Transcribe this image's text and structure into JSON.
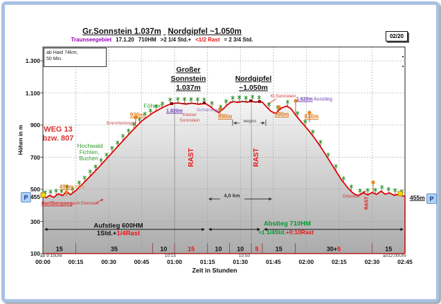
{
  "header": {
    "title_part1": "Gr.Sonnstein 1.037m",
    "title_part2": "Nordgipfel ~1.050m",
    "badge": "02/20",
    "subtitle": {
      "region": "Traunseegebiet",
      "date": "17.1.20",
      "hm": "710HM",
      "walk_time": ">2 1/4 Std.+",
      "rast": "<1/2 Rast",
      "total": "= 2 3/4 Std."
    }
  },
  "infobox": {
    "line1": "ab Haid 74km;",
    "line2": "50 Min."
  },
  "axes": {
    "y_title": "Höhen in m",
    "x_title": "Zeit in Stunden",
    "y_labels": [
      "1.300",
      "1.100",
      "900",
      "700",
      "500",
      "455",
      "300",
      "100"
    ],
    "x_labels": [
      "00:00",
      "00:15",
      "00:30",
      "00:45",
      "01:00",
      "01:15",
      "01:30",
      "01:45",
      "02:00",
      "02:15",
      "02:30",
      "02:45"
    ],
    "start_note": "ab 9:15Uhr",
    "end_note": "an12:00Uhr",
    "clock_labels": [
      "10:15",
      "10:50"
    ]
  },
  "peak1": {
    "lines": [
      "Großer",
      "Sonnstein",
      "1.037m"
    ]
  },
  "peak2": {
    "lines": [
      "Nordgipfel",
      "~1.050m"
    ]
  },
  "parking_left": {
    "p": "P",
    "alt": "455"
  },
  "parking_right": {
    "alt_label": "455m",
    "p": "P"
  },
  "routes": {
    "aufstieg_line1": "Aufstieg 600HM",
    "aufstieg_hm": "1Std.+",
    "aufstieg_rast": "1/4Rast",
    "abstieg_line1": "Abstieg 710HM",
    "abstieg_time": ">1 1/4Std.",
    "abstieg_rast": "+0:10Rast"
  },
  "annotations": [
    {
      "id": "weg13-line1",
      "text": "WEG 13",
      "color": "#d83030"
    },
    {
      "id": "weg13-line2",
      "text": "bzw. 807",
      "color": "#d83030"
    },
    {
      "id": "hochwald-1",
      "text": "Hochwald",
      "color": "#2f9e2f"
    },
    {
      "id": "hochwald-2",
      "text": "Fichten,",
      "color": "#2f9e2f"
    },
    {
      "id": "hochwald-3",
      "text": "Buchen",
      "color": "#2f9e2f"
    },
    {
      "id": "m490-links",
      "text": "490m",
      "color": "#e07818"
    },
    {
      "id": "links",
      "text": "links",
      "color": "#e08a30"
    },
    {
      "id": "bartlbergweg",
      "text": "Bartlbergweg",
      "color": "#d83030"
    },
    {
      "id": "nach-ebensee",
      "text": "nach Ebensee",
      "color": "#d83030"
    },
    {
      "id": "brenntenkogel",
      "text": "Brenntenkogel",
      "color": "#c05050"
    },
    {
      "id": "m930-a",
      "text": "930m",
      "color": "#e07818"
    },
    {
      "id": "foehren",
      "text": "Föhren",
      "color": "#2f9e2f"
    },
    {
      "id": "m1820",
      "text": "1.820m",
      "color": "#7040b0"
    },
    {
      "id": "kleiner-sonnstein-1",
      "text": "Kleiner",
      "color": "#cc4444"
    },
    {
      "id": "kleiner-sonnstein-2",
      "text": "Sonnstein",
      "color": "#cc4444"
    },
    {
      "id": "sicherungen",
      "text": "Sicherungen",
      "color": "#8a70c8"
    },
    {
      "id": "m990-a",
      "text": "990m",
      "color": "#e07818"
    },
    {
      "id": "weglos",
      "text": "weglos",
      "color": "#444444"
    },
    {
      "id": "kl-sonnstein",
      "text": "Kl.Sonnstein",
      "color": "#d83030"
    },
    {
      "id": "m1620",
      "text": "1.620m",
      "color": "#7040b0"
    },
    {
      "id": "ausstieg",
      "text": "Ausstieg",
      "color": "#7040b0"
    },
    {
      "id": "m990-b",
      "text": "990m",
      "color": "#e07818"
    },
    {
      "id": "m830",
      "text": "830m",
      "color": "#e07818"
    },
    {
      "id": "ortsmitte",
      "text": "Ortsmitte",
      "color": "#d83030"
    },
    {
      "id": "rast-1",
      "text": "RAST",
      "color": "#ee1111"
    },
    {
      "id": "rast-2",
      "text": "RAST",
      "color": "#ee1111"
    },
    {
      "id": "rast-3",
      "text": "RAST",
      "color": "#ee1111"
    },
    {
      "id": "km4",
      "text": "4,0 km",
      "color": "#333333"
    }
  ],
  "segments": [
    {
      "minutes": 15,
      "parts": [
        {
          "t": "15",
          "c": "#111111"
        }
      ]
    },
    {
      "minutes": 35,
      "parts": [
        {
          "t": "35",
          "c": "#111111"
        }
      ]
    },
    {
      "minutes": 10,
      "parts": [
        {
          "t": "10",
          "c": "#111111"
        }
      ]
    },
    {
      "minutes": 15,
      "parts": [
        {
          "t": "15",
          "c": "#ee1111"
        }
      ]
    },
    {
      "minutes": 10,
      "parts": [
        {
          "t": "10",
          "c": "#111111"
        }
      ]
    },
    {
      "minutes": 10,
      "parts": [
        {
          "t": "10",
          "c": "#111111"
        }
      ]
    },
    {
      "minutes": 5,
      "parts": [
        {
          "t": "5",
          "c": "#ee1111"
        }
      ]
    },
    {
      "minutes": 15,
      "parts": [
        {
          "t": "15",
          "c": "#111111"
        }
      ]
    },
    {
      "minutes": 35,
      "parts": [
        {
          "t": "30+",
          "c": "#111111"
        },
        {
          "t": "5",
          "c": "#ee1111"
        }
      ]
    },
    {
      "minutes": 15,
      "parts": [
        {
          "t": "15",
          "c": "#111111"
        }
      ]
    }
  ],
  "chart_data": {
    "type": "area",
    "title": "Gr.Sonnstein 1.037m Nordgipfel ~1.050m",
    "xlabel": "Zeit in Stunden",
    "ylabel": "Höhen in m",
    "x_unit": "minutes",
    "xlim": [
      0,
      165
    ],
    "ylim": [
      100,
      1386
    ],
    "y_gridlines": [
      1300,
      1100,
      900,
      700,
      500,
      300
    ],
    "x_gridline_step_min": 15,
    "start_alt_m": 455,
    "peak1_alt_m": 1037,
    "peak2_alt_m": 1050,
    "total_ascent_hm": 710,
    "profile": [
      [
        0,
        457
      ],
      [
        1.5,
        448
      ],
      [
        3,
        462
      ],
      [
        5,
        450
      ],
      [
        7,
        472
      ],
      [
        9,
        460
      ],
      [
        10.7,
        488
      ],
      [
        12.5,
        466
      ],
      [
        15,
        492
      ],
      [
        20,
        560
      ],
      [
        25,
        630
      ],
      [
        30,
        705
      ],
      [
        35,
        780
      ],
      [
        40,
        855
      ],
      [
        45,
        925
      ],
      [
        50,
        975
      ],
      [
        54,
        1005
      ],
      [
        57,
        1025
      ],
      [
        60,
        1036
      ],
      [
        62,
        1037
      ],
      [
        65,
        1030
      ],
      [
        68,
        1036
      ],
      [
        71,
        1029
      ],
      [
        74,
        1034
      ],
      [
        76,
        1018
      ],
      [
        78,
        995
      ],
      [
        80,
        978
      ],
      [
        82,
        998
      ],
      [
        84,
        1025
      ],
      [
        85.5,
        1040
      ],
      [
        87,
        1046
      ],
      [
        89,
        1041
      ],
      [
        91,
        1047
      ],
      [
        93,
        1043
      ],
      [
        95,
        1047
      ],
      [
        97,
        1043
      ],
      [
        99,
        1047
      ],
      [
        100,
        1042
      ],
      [
        102,
        1012
      ],
      [
        104,
        985
      ],
      [
        106,
        972
      ],
      [
        107.5,
        992
      ],
      [
        109,
        1008
      ],
      [
        111,
        1018
      ],
      [
        113,
        1003
      ],
      [
        115,
        965
      ],
      [
        118,
        915
      ],
      [
        121,
        868
      ],
      [
        124,
        815
      ],
      [
        127,
        755
      ],
      [
        130,
        690
      ],
      [
        133,
        625
      ],
      [
        136,
        560
      ],
      [
        139,
        508
      ],
      [
        141,
        480
      ],
      [
        142.5,
        467
      ],
      [
        144,
        462
      ],
      [
        146,
        478
      ],
      [
        148,
        465
      ],
      [
        150,
        480
      ],
      [
        152,
        468
      ],
      [
        154,
        488
      ],
      [
        156,
        470
      ],
      [
        158,
        478
      ],
      [
        160,
        462
      ],
      [
        162,
        470
      ],
      [
        164,
        458
      ],
      [
        165,
        458
      ]
    ],
    "segment_minutes": [
      15,
      35,
      10,
      15,
      10,
      10,
      5,
      15,
      35,
      15
    ]
  },
  "colors": {
    "profile_line": "#e00000",
    "fill_top": "#f4f4f4",
    "fill_bottom": "#ababab",
    "grid": "#999999",
    "frame_blue": "#a7c1e2",
    "rast_red": "#ee1111",
    "abstieg_green": "#009933"
  }
}
